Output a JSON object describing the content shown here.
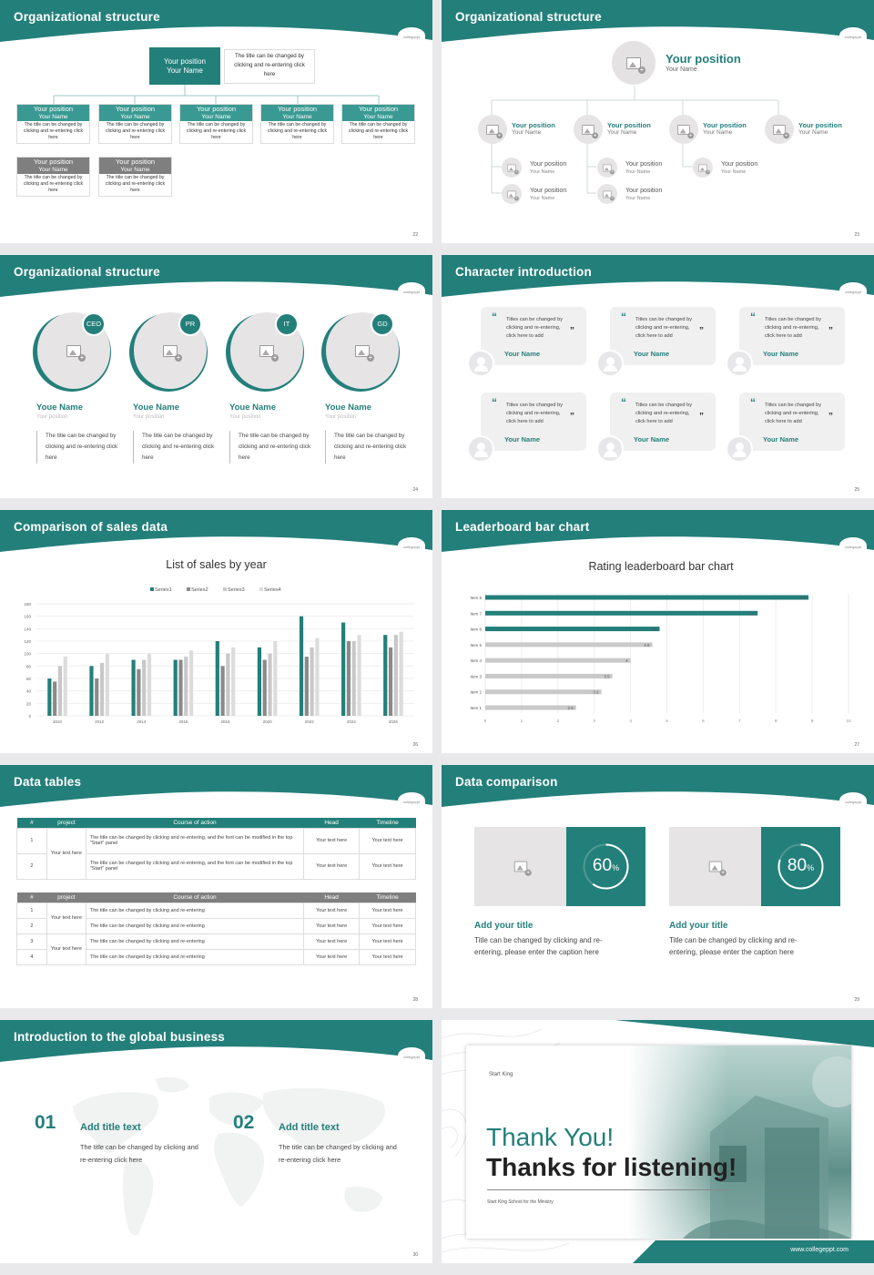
{
  "slides": {
    "s22": {
      "title": "Organizational structure",
      "page": "22",
      "top_box": {
        "position": "Your position",
        "name": "Your Name",
        "desc": "The title can be changed by clicking and re-entering click here"
      },
      "boxes": [
        {
          "position": "Your position",
          "name": "Your Name",
          "desc": "The title can be changed by clicking and re-entering click here",
          "color": "#3a9a93"
        },
        {
          "position": "Your position",
          "name": "Your Name",
          "desc": "The title can be changed by clicking and re-entering click here",
          "color": "#3a9a93"
        },
        {
          "position": "Your position",
          "name": "Your Name",
          "desc": "The title can be changed by clicking and re-entering click here",
          "color": "#3a9a93"
        },
        {
          "position": "Your position",
          "name": "Your Name",
          "desc": "The title can be changed by clicking and re-entering click here",
          "color": "#3a9a93"
        },
        {
          "position": "Your position",
          "name": "Your Name",
          "desc": "The title can be changed by clicking and re-entering click here",
          "color": "#3a9a93"
        },
        {
          "position": "Your position",
          "name": "Your Name",
          "desc": "The title can be changed by clicking and re-entering click here",
          "color": "#7f7f7f"
        },
        {
          "position": "Your position",
          "name": "Your Name",
          "desc": "The title can be changed by clicking and re-entering click here",
          "color": "#7f7f7f"
        }
      ]
    },
    "s23": {
      "title": "Organizational structure",
      "page": "23",
      "top": {
        "position": "Your position",
        "name": "Your Name"
      },
      "row": [
        {
          "position": "Your position",
          "name": "Your Name"
        },
        {
          "position": "Your position",
          "name": "Your Name"
        },
        {
          "position": "Your position",
          "name": "Your Name"
        },
        {
          "position": "Your position",
          "name": "Your Name"
        }
      ],
      "sub": [
        {
          "position": "Your position",
          "name": "Your Name"
        },
        {
          "position": "Your position",
          "name": "Your Name"
        },
        {
          "position": "Your position",
          "name": "Your Name"
        },
        {
          "position": "Your position",
          "name": "Your Name"
        },
        {
          "position": "Your position",
          "name": "Your Name"
        }
      ]
    },
    "s24": {
      "title": "Organizational structure",
      "page": "24",
      "people": [
        {
          "badge": "CEO",
          "name": "Youe Name",
          "position": "Your position",
          "desc": "The title can be changed by clicking and re-entering click here"
        },
        {
          "badge": "PR",
          "name": "Youe Name",
          "position": "Your position",
          "desc": "The title can be changed by clicking and re-entering click here"
        },
        {
          "badge": "IT",
          "name": "Youe Name",
          "position": "Your position",
          "desc": "The title can be changed by clicking and re-entering click here"
        },
        {
          "badge": "GD",
          "name": "Youe Name",
          "position": "Your position",
          "desc": "The title can be changed by clicking and re-entering click here"
        }
      ]
    },
    "s25": {
      "title": "Character introduction",
      "page": "25",
      "cards": [
        {
          "text": "Titles can be changed by clicking and re-entering, click here to add",
          "name": "Your Name"
        },
        {
          "text": "Titles can be changed by clicking and re-entering, click here to add",
          "name": "Your Name"
        },
        {
          "text": "Titles can be changed by clicking and re-entering, click here to add",
          "name": "Your Name"
        },
        {
          "text": "Titles can be changed by clicking and re-entering, click here to add",
          "name": "Your Name"
        },
        {
          "text": "Titles can be changed by clicking and re-entering, click here to add",
          "name": "Your Name"
        },
        {
          "text": "Titles can be changed by clicking and re-entering, click here to add",
          "name": "Your Name"
        }
      ]
    },
    "s26": {
      "title": "Comparison of sales data",
      "page": "26"
    },
    "s27": {
      "title": "Leaderboard bar chart",
      "page": "27"
    },
    "s28": {
      "title": "Data tables",
      "page": "28",
      "t1_headers": [
        "#",
        "project",
        "Course of action",
        "Head",
        "Timeline"
      ],
      "t1_rows": [
        {
          "n": "1",
          "action": "The title can be changed by clicking and re-entering, and the font can be modified in the top \"Start\" panel",
          "head": "Your text here",
          "time": "Your text here"
        },
        {
          "n": "2",
          "action": "The title can be changed by clicking and re-entering, and the font can be modified in the top \"Start\" panel",
          "head": "Your text here",
          "time": "Your text here"
        }
      ],
      "t1_project": "Your text here",
      "t2_headers": [
        "#",
        "project",
        "Course of action",
        "Head",
        "Timeline"
      ],
      "t2_rows": [
        {
          "n": "1",
          "action": "The title can be changed by clicking and re-entering",
          "head": "Your text here",
          "time": "Your text here"
        },
        {
          "n": "2",
          "action": "The title can be changed by clicking and re-entering",
          "head": "Your text here",
          "time": "Your text here"
        },
        {
          "n": "3",
          "action": "The title can be changed by clicking and re-entering",
          "head": "Your text here",
          "time": "Your text here"
        },
        {
          "n": "4",
          "action": "The title can be changed by clicking and re-entering",
          "head": "Your text here",
          "time": "Your text here"
        }
      ],
      "t2_projects": [
        "Your text here",
        "Your text here"
      ]
    },
    "s29": {
      "title": "Data comparison",
      "page": "29",
      "items": [
        {
          "value": "60",
          "unit": "%",
          "fraction": 0.6,
          "title": "Add your title",
          "desc": "Title can be changed by clicking and re-entering, please enter the caption here"
        },
        {
          "value": "80",
          "unit": "%",
          "fraction": 0.8,
          "title": "Add your title",
          "desc": "Title can be changed by clicking and re-entering, please enter the caption here"
        }
      ]
    },
    "s30": {
      "title": "Introduction to the global business",
      "page": "30",
      "items": [
        {
          "num": "01",
          "title": "Add title text",
          "desc": "The title can be changed by clicking and re-entering click here"
        },
        {
          "num": "02",
          "title": "Add title text",
          "desc": "The title can be changed by clicking and re-entering click here"
        }
      ]
    },
    "s31": {
      "thank": "Thank You!",
      "thanks": "Thanks for listening!",
      "logo": "Start King",
      "school": "Start King School for the Ministry",
      "url": "www.collegeppt.com"
    }
  },
  "logo_text": "collegeppt",
  "colors": {
    "teal": "#237f7a",
    "teal_light": "#3a9a93",
    "gray": "#7f7f7f",
    "bar_gray": "#c9c9c9"
  },
  "chart_data": [
    {
      "type": "bar",
      "title": "List of sales by year",
      "categories": [
        "2010",
        "2012",
        "2014",
        "2016",
        "2018",
        "2020",
        "2022",
        "2024",
        "2026"
      ],
      "series": [
        {
          "name": "Series1",
          "color": "#237f7a",
          "values": [
            60,
            80,
            90,
            90,
            120,
            110,
            160,
            150,
            130
          ]
        },
        {
          "name": "Series2",
          "color": "#8a8a8a",
          "values": [
            55,
            60,
            75,
            90,
            80,
            90,
            95,
            120,
            110
          ]
        },
        {
          "name": "Series3",
          "color": "#c8c8c8",
          "values": [
            80,
            85,
            90,
            95,
            100,
            100,
            110,
            120,
            130
          ]
        },
        {
          "name": "Series4",
          "color": "#dcdcdc",
          "values": [
            95,
            100,
            100,
            105,
            110,
            120,
            125,
            130,
            135
          ]
        }
      ],
      "yticks": [
        "0",
        "20",
        "40",
        "60",
        "80",
        "100",
        "120",
        "140",
        "160",
        "180"
      ],
      "ylim": [
        0,
        180
      ],
      "legend": "top",
      "grid": true
    },
    {
      "type": "bar",
      "orientation": "horizontal",
      "title": "Rating leaderboard bar chart",
      "categories": [
        "Item 8",
        "Item 7",
        "Item 6",
        "Item 5",
        "Item 4",
        "Item 3",
        "Item 2",
        "Item 1"
      ],
      "values": [
        8.9,
        7.5,
        4.8,
        4.6,
        4,
        3.5,
        3.2,
        2.5
      ],
      "value_labels": [
        "8.9",
        "7.5",
        "4.8",
        "4.6",
        "4",
        "3.5",
        "3.2",
        "2.5"
      ],
      "xticks": [
        "0",
        "1",
        "2",
        "3",
        "4",
        "5",
        "6",
        "7",
        "8",
        "9",
        "10"
      ],
      "xlim": [
        0,
        10
      ],
      "grid": true
    }
  ]
}
